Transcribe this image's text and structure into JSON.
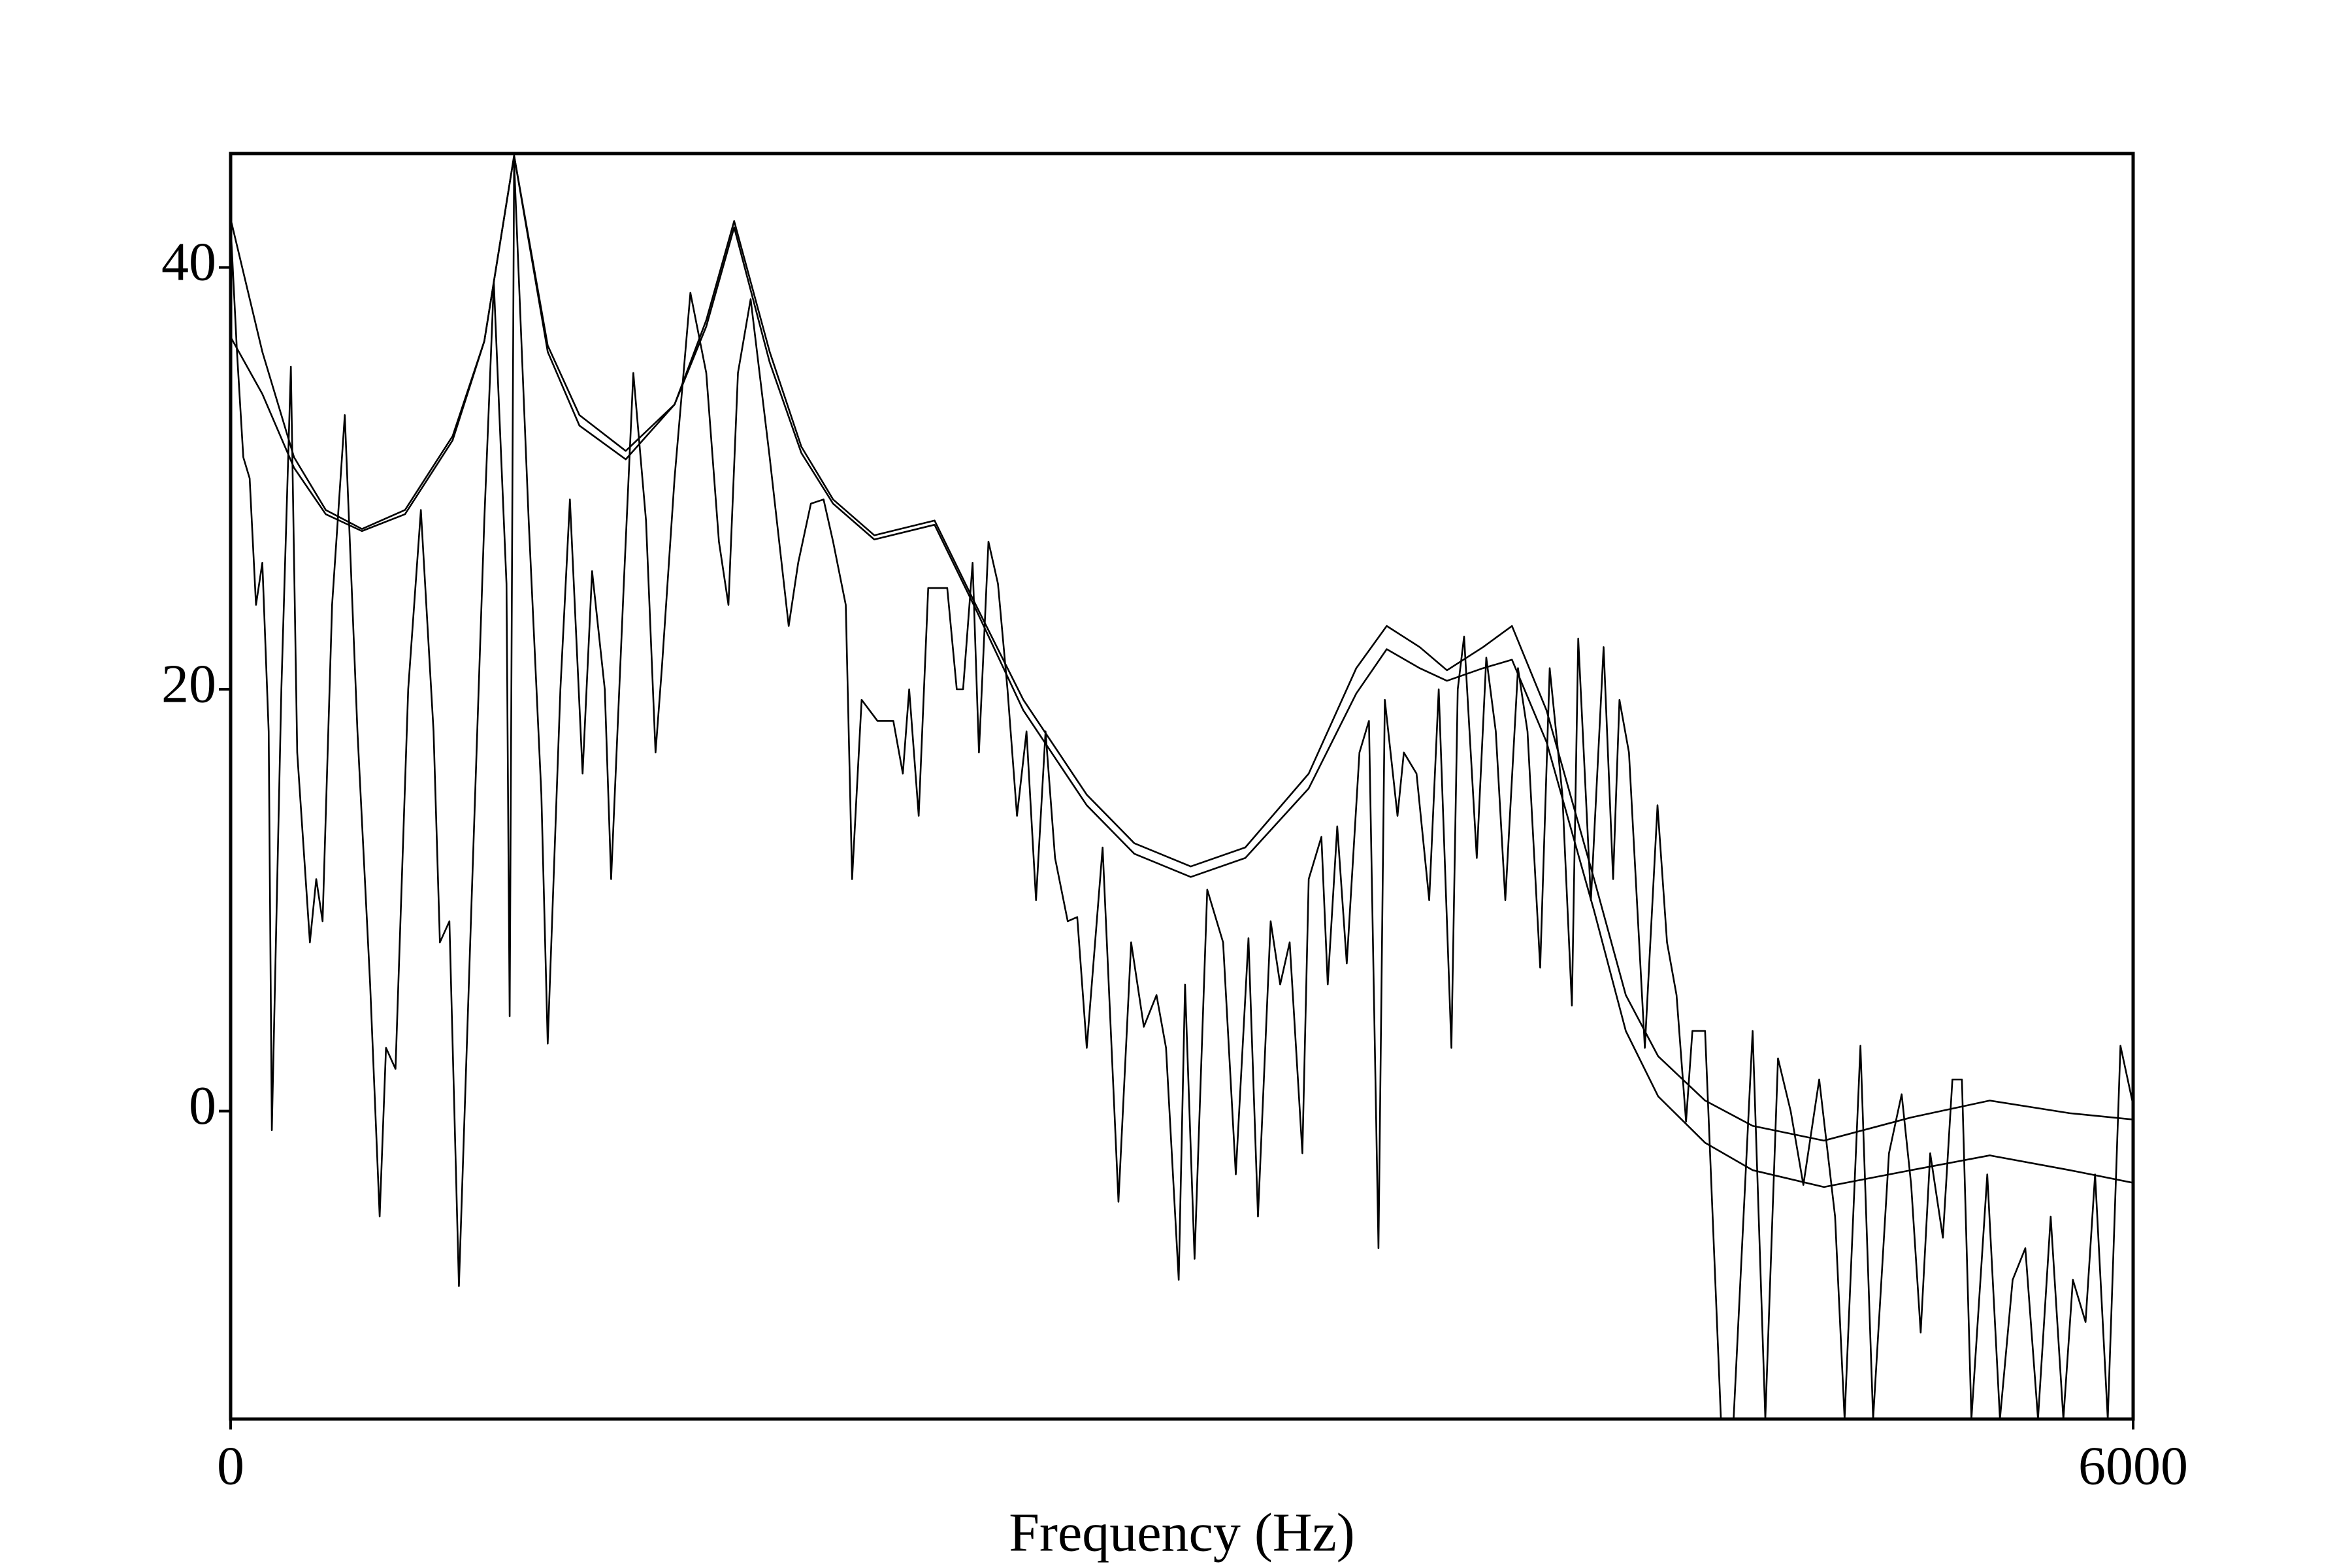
{
  "chart_data": {
    "type": "line",
    "xlabel": "Frequency (Hz)",
    "xlim": [
      0,
      6000
    ],
    "ylim": [
      -14.6,
      45.4
    ],
    "xticks": [
      0,
      6000
    ],
    "yticks": [
      0,
      20,
      40
    ],
    "grid": false,
    "series": [
      {
        "color": "#000000",
        "x": [
          0,
          20,
          40,
          60,
          80,
          100,
          120,
          130,
          160,
          190,
          210,
          250,
          270,
          290,
          320,
          360,
          400,
          440,
          470,
          490,
          520,
          560,
          600,
          640,
          660,
          690,
          720,
          760,
          800,
          830,
          870,
          880,
          894,
          940,
          980,
          1000,
          1040,
          1070,
          1110,
          1140,
          1180,
          1200,
          1240,
          1270,
          1310,
          1340,
          1360,
          1400,
          1450,
          1500,
          1540,
          1570,
          1600,
          1640,
          1700,
          1760,
          1790,
          1830,
          1870,
          1900,
          1940,
          1960,
          1990,
          2040,
          2090,
          2120,
          2140,
          2170,
          2200,
          2260,
          2290,
          2310,
          2340,
          2360,
          2390,
          2420,
          2450,
          2480,
          2510,
          2540,
          2570,
          2600,
          2640,
          2670,
          2700,
          2750,
          2800,
          2840,
          2880,
          2920,
          2950,
          2990,
          3010,
          3040,
          3080,
          3130,
          3170,
          3210,
          3240,
          3280,
          3310,
          3340,
          3380,
          3400,
          3440,
          3460,
          3490,
          3520,
          3560,
          3590,
          3620,
          3640,
          3680,
          3700,
          3740,
          3780,
          3810,
          3850,
          3870,
          3890,
          3930,
          3960,
          3990,
          4020,
          4060,
          4090,
          4130,
          4160,
          4200,
          4230,
          4250,
          4290,
          4330,
          4360,
          4380,
          4410,
          4460,
          4500,
          4530,
          4560,
          4590,
          4610,
          4650,
          4700,
          4740,
          4800,
          4840,
          4880,
          4920,
          4960,
          5010,
          5060,
          5090,
          5140,
          5180,
          5230,
          5270,
          5300,
          5330,
          5360,
          5400,
          5430,
          5460,
          5490,
          5540,
          5580,
          5620,
          5660,
          5700,
          5740,
          5780,
          5810,
          5850,
          5880,
          5920,
          5960,
          6000
        ],
        "values": [
          42,
          36,
          31,
          30,
          24,
          26,
          18,
          -0.9,
          20,
          35.3,
          17,
          8,
          11,
          9,
          24,
          33,
          18,
          6,
          -5,
          3,
          2,
          20,
          28.5,
          18,
          8,
          9,
          -8.3,
          10,
          28,
          39.3,
          25,
          4.5,
          45,
          28,
          15,
          3.2,
          20,
          29,
          16,
          25.6,
          20,
          11,
          25,
          35,
          28,
          17,
          21,
          30,
          38.8,
          35,
          27,
          24,
          35,
          38.5,
          31,
          23,
          26,
          28.8,
          29,
          27,
          24,
          11,
          19.5,
          18.5,
          18.5,
          16,
          20,
          14,
          24.8,
          24.8,
          20,
          20,
          26,
          17,
          27,
          25,
          20,
          14,
          18,
          10,
          18,
          12,
          9,
          9.2,
          3,
          12.5,
          -4.3,
          8,
          4,
          5.5,
          3,
          -8,
          6,
          -7,
          10.5,
          8,
          -3,
          8.2,
          -5,
          9,
          6,
          8,
          -2,
          11,
          13,
          6,
          13.5,
          7,
          17,
          18.5,
          -6.5,
          19.5,
          14,
          17,
          16,
          10,
          20,
          3,
          20,
          22.5,
          12,
          21.5,
          18,
          10,
          21,
          18,
          6.8,
          21,
          15,
          5,
          22.4,
          10,
          22,
          11,
          19.5,
          17,
          3,
          14.5,
          8,
          5.5,
          -0.5,
          3.8,
          3.8,
          -14.6,
          -14.6,
          3.8,
          -14.6,
          2.5,
          0,
          -3.5,
          1.5,
          -5,
          -14.6,
          3.1,
          -14.6,
          -2,
          0.8,
          -3.5,
          -10.5,
          -2,
          -6,
          1.5,
          1.5,
          -14.6,
          -3,
          -14.6,
          -8,
          -6.5,
          -14.6,
          -5,
          -14.6,
          -8,
          -10,
          -3,
          -14.6,
          3.1,
          0.3
        ]
      },
      {
        "color": "#000000",
        "x": [
          0,
          100,
          200,
          300,
          414,
          550,
          700,
          800,
          894,
          1000,
          1100,
          1246,
          1400,
          1500,
          1588,
          1700,
          1800,
          1900,
          2030,
          2220,
          2350,
          2500,
          2700,
          2850,
          3028,
          3200,
          3400,
          3550,
          3646,
          3750,
          3836,
          3950,
          4041,
          4150,
          4300,
          4400,
          4502,
          4650,
          4800,
          5025,
          5300,
          5548,
          5800,
          6000
        ],
        "values": [
          42.3,
          36,
          31,
          28.5,
          27.6,
          28.5,
          32,
          36.5,
          45.3,
          36,
          32.5,
          30.9,
          33.5,
          37.5,
          42.2,
          36,
          31.5,
          29,
          27.3,
          28,
          24,
          19.5,
          15,
          12.7,
          11.6,
          12.5,
          16,
          21,
          23,
          22,
          20.9,
          22,
          23,
          19,
          11,
          5.5,
          2.6,
          0.5,
          -0.7,
          -1.4,
          -0.3,
          0.5,
          -0.1,
          -0.4
        ]
      },
      {
        "color": "#000000",
        "x": [
          0,
          100,
          200,
          300,
          414,
          550,
          700,
          800,
          894,
          1000,
          1100,
          1246,
          1400,
          1500,
          1588,
          1700,
          1800,
          1900,
          2030,
          2220,
          2350,
          2500,
          2700,
          2850,
          3028,
          3200,
          3400,
          3550,
          3646,
          3750,
          3836,
          3950,
          4041,
          4150,
          4300,
          4400,
          4502,
          4650,
          4800,
          5025,
          5300,
          5548,
          5800,
          6000
        ],
        "values": [
          36.7,
          34,
          30.5,
          28.3,
          27.5,
          28.3,
          31.8,
          36.5,
          45.3,
          36.3,
          33,
          31.3,
          33.5,
          37.2,
          41.9,
          35.5,
          31.2,
          28.8,
          27.1,
          27.8,
          23.8,
          19,
          14.5,
          12.2,
          11.1,
          12,
          15.3,
          19.8,
          21.9,
          21,
          20.4,
          21,
          21.4,
          17.5,
          9.5,
          3.8,
          0.7,
          -1.5,
          -2.8,
          -3.6,
          -2.8,
          -2.1,
          -2.8,
          -3.4
        ]
      }
    ]
  }
}
